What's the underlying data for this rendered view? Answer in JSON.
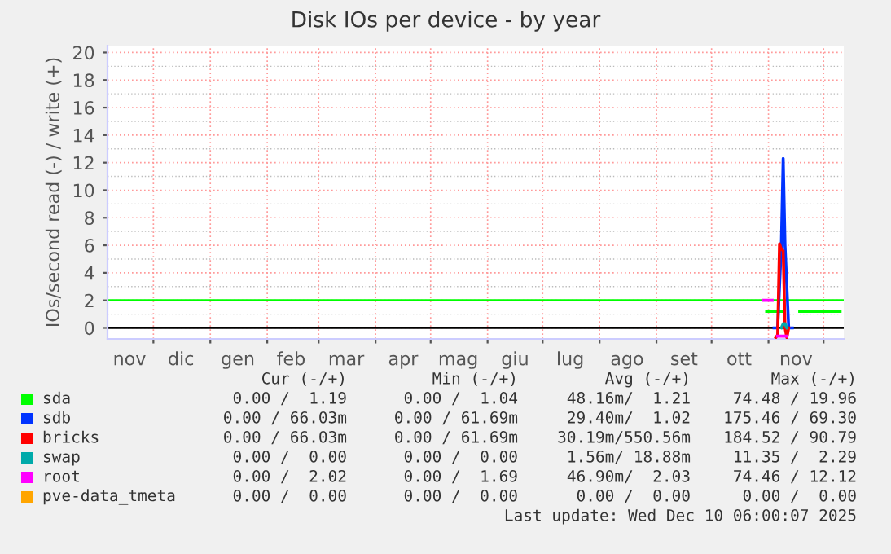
{
  "chart_data": {
    "type": "line",
    "title": "Disk IOs per device - by year",
    "ylabel": "IOs/second read (-) / write (+)",
    "xlim": [
      "2024-11-06",
      "2025-12-12"
    ],
    "ylim": [
      -0.8,
      20.5
    ],
    "yticks": [
      0,
      2,
      4,
      6,
      8,
      10,
      12,
      14,
      16,
      18,
      20
    ],
    "xticks": [
      {
        "value": "2024-11-18",
        "label": "nov"
      },
      {
        "value": "2024-12-01",
        "label": null
      },
      {
        "value": "2024-12-16",
        "label": "dic"
      },
      {
        "value": "2025-01-01",
        "label": null
      },
      {
        "value": "2025-01-16",
        "label": "gen"
      },
      {
        "value": "2025-02-01",
        "label": null
      },
      {
        "value": "2025-02-14",
        "label": "feb"
      },
      {
        "value": "2025-03-01",
        "label": null
      },
      {
        "value": "2025-03-16",
        "label": "mar"
      },
      {
        "value": "2025-04-01",
        "label": null
      },
      {
        "value": "2025-04-16",
        "label": "apr"
      },
      {
        "value": "2025-05-01",
        "label": null
      },
      {
        "value": "2025-05-16",
        "label": "mag"
      },
      {
        "value": "2025-06-01",
        "label": null
      },
      {
        "value": "2025-06-16",
        "label": "giu"
      },
      {
        "value": "2025-07-01",
        "label": null
      },
      {
        "value": "2025-07-16",
        "label": "lug"
      },
      {
        "value": "2025-08-01",
        "label": null
      },
      {
        "value": "2025-08-16",
        "label": "ago"
      },
      {
        "value": "2025-09-01",
        "label": null
      },
      {
        "value": "2025-09-16",
        "label": "set"
      },
      {
        "value": "2025-10-01",
        "label": null
      },
      {
        "value": "2025-10-16",
        "label": "ott"
      },
      {
        "value": "2025-11-01",
        "label": null
      },
      {
        "value": "2025-11-16",
        "label": "nov"
      },
      {
        "value": "2025-12-01",
        "label": null
      }
    ],
    "grid": true,
    "legend": "bottom left",
    "marker": "none",
    "line_style": "solid",
    "ref_lines": [
      {
        "axis": "y",
        "value": 2,
        "color": "#00ff00"
      },
      {
        "axis": "y",
        "value": 0,
        "color": "#000000"
      }
    ],
    "series": [
      {
        "name": "sda",
        "color": "#00ff00",
        "x": [
          "2025-10-31",
          "2025-11-08",
          "2025-11-13",
          "2025-11-18",
          "2025-12-10"
        ],
        "values": [
          1.2,
          1.2,
          null,
          1.2,
          1.2
        ]
      },
      {
        "name": "sdb",
        "color": "#0033ff",
        "x": [
          "2025-11-04",
          "2025-11-06",
          "2025-11-08",
          "2025-11-09",
          "2025-11-10",
          "2025-11-12",
          "2025-11-14"
        ],
        "values": [
          0,
          0,
          6,
          12.3,
          6,
          0,
          0
        ]
      },
      {
        "name": "bricks",
        "color": "#ff0000",
        "x": [
          "2025-11-05",
          "2025-11-06",
          "2025-11-07",
          "2025-11-08",
          "2025-11-09",
          "2025-11-10",
          "2025-11-11",
          "2025-11-12"
        ],
        "values": [
          -0.7,
          -0.5,
          6.1,
          5.7,
          5.6,
          0,
          -0.7,
          0
        ]
      },
      {
        "name": "swap",
        "color": "#00aaaa",
        "x": [
          "2025-11-08",
          "2025-11-09",
          "2025-11-10",
          "2025-11-11"
        ],
        "values": [
          0,
          0.3,
          0.3,
          0
        ]
      },
      {
        "name": "root",
        "color": "#ff00ff",
        "x": [
          "2025-10-29",
          "2025-11-03",
          "2025-11-04",
          "2025-11-06",
          "2025-11-11"
        ],
        "values": [
          2,
          2,
          null,
          -0.6,
          -0.6
        ]
      },
      {
        "name": "pve-data_tmeta",
        "color": "#ffa500"
      }
    ],
    "annotations": [
      "Cur (-/+)",
      "Min (-/+)",
      "Avg (-/+)",
      "Max (-/+)",
      "0.00 /  1.19",
      "0.00 /  1.04",
      "48.16m/  1.21",
      "74.48 / 19.96",
      "0.00 / 66.03m",
      "0.00 / 61.69m",
      "29.40m/  1.02",
      "175.46 / 69.30",
      "0.00 / 66.03m",
      "0.00 / 61.69m",
      "30.19m/550.56m",
      "184.52 / 90.79",
      "0.00 /  0.00",
      "0.00 /  0.00",
      "1.56m/ 18.88m",
      "11.35 /  2.29",
      "0.00 /  2.02",
      "0.00 /  1.69",
      "46.90m/  2.03",
      "74.46 / 12.12",
      "0.00 /  0.00",
      "0.00 /  0.00",
      "0.00 /  0.00",
      "0.00 /  0.00",
      "Last update: Wed Dec 10 06:00:07 2025"
    ]
  }
}
